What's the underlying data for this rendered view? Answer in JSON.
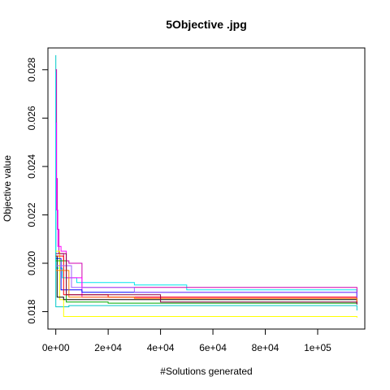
{
  "chart_data": {
    "type": "line",
    "title": "5Objective .jpg",
    "xlabel": "#Solutions generated",
    "ylabel": "Objective value",
    "xlim": [
      -3000,
      118000
    ],
    "ylim": [
      0.01728,
      0.0289
    ],
    "x_ticks": [
      0,
      20000,
      40000,
      60000,
      80000,
      100000
    ],
    "x_tick_labels": [
      "0e+00",
      "2e+04",
      "4e+04",
      "6e+04",
      "8e+04",
      "1e+05"
    ],
    "y_ticks": [
      0.018,
      0.02,
      0.022,
      0.024,
      0.026,
      0.028
    ],
    "y_tick_labels": [
      "0.018",
      "0.020",
      "0.022",
      "0.024",
      "0.026",
      "0.028"
    ],
    "grid": false,
    "series": [
      {
        "color": "#00c8c8",
        "points": [
          [
            0,
            0.0286
          ],
          [
            0,
            0.0182
          ],
          [
            5000,
            0.01825
          ],
          [
            115000,
            0.01805
          ]
        ]
      },
      {
        "color": "#00e5ee",
        "points": [
          [
            0,
            0.0279
          ],
          [
            0,
            0.0198
          ],
          [
            2500,
            0.0194
          ],
          [
            8000,
            0.0192
          ],
          [
            30000,
            0.0191
          ],
          [
            50000,
            0.0189
          ],
          [
            115000,
            0.01855
          ]
        ]
      },
      {
        "color": "#d000b0",
        "points": [
          [
            0,
            0.028
          ],
          [
            300,
            0.0235
          ],
          [
            600,
            0.0214
          ],
          [
            1200,
            0.0204
          ],
          [
            3000,
            0.0201
          ],
          [
            5000,
            0.02
          ],
          [
            10000,
            0.019
          ],
          [
            115000,
            0.01835
          ]
        ]
      },
      {
        "color": "#ff00ff",
        "points": [
          [
            0,
            0.0258
          ],
          [
            300,
            0.0222
          ],
          [
            800,
            0.0207
          ],
          [
            2000,
            0.0205
          ],
          [
            4000,
            0.0194
          ],
          [
            10000,
            0.0186
          ],
          [
            115000,
            0.0183
          ]
        ]
      },
      {
        "color": "#ffff00",
        "points": [
          [
            0,
            0.0205
          ],
          [
            1500,
            0.0185
          ],
          [
            3000,
            0.0178
          ],
          [
            115000,
            0.01775
          ]
        ]
      },
      {
        "color": "#0000ff",
        "points": [
          [
            0,
            0.0202
          ],
          [
            2000,
            0.0189
          ],
          [
            10000,
            0.0188
          ],
          [
            70000,
            0.0188
          ],
          [
            115000,
            0.01855
          ]
        ]
      },
      {
        "color": "#000000",
        "points": [
          [
            0,
            0.0203
          ],
          [
            500,
            0.0186
          ],
          [
            3000,
            0.0185
          ],
          [
            12000,
            0.0185
          ],
          [
            115000,
            0.01845
          ]
        ]
      },
      {
        "color": "#00aa00",
        "points": [
          [
            0,
            0.0201
          ],
          [
            4000,
            0.0184
          ],
          [
            20000,
            0.01835
          ],
          [
            115000,
            0.0183
          ]
        ]
      },
      {
        "color": "#ff0000",
        "points": [
          [
            0,
            0.0203
          ],
          [
            3000,
            0.0187
          ],
          [
            20000,
            0.0186
          ],
          [
            115000,
            0.0184
          ]
        ]
      },
      {
        "color": "#9f5fff",
        "points": [
          [
            0,
            0.0199
          ],
          [
            6000,
            0.019
          ],
          [
            30000,
            0.0188
          ],
          [
            115000,
            0.01845
          ]
        ]
      },
      {
        "color": "#ff8000",
        "points": [
          [
            0,
            0.0197
          ],
          [
            5000,
            0.0186
          ],
          [
            30000,
            0.01855
          ],
          [
            115000,
            0.0184
          ]
        ]
      },
      {
        "color": "#8b0045",
        "points": [
          [
            0,
            0.0204
          ],
          [
            4000,
            0.0187
          ],
          [
            40000,
            0.0184
          ],
          [
            115000,
            0.0183
          ]
        ]
      }
    ]
  }
}
